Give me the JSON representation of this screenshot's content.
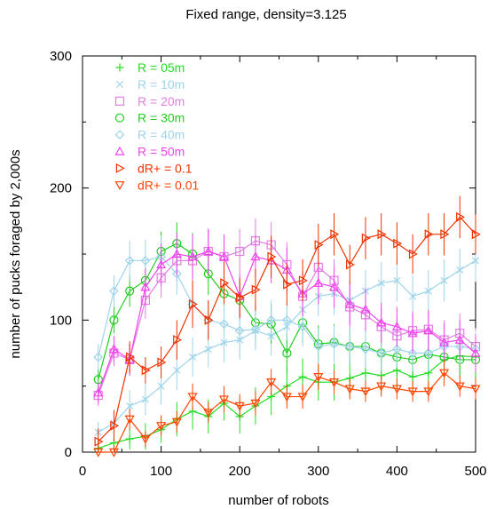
{
  "chart_data": {
    "type": "line",
    "title": "Fixed range, density=3.125",
    "xlabel": "number of robots",
    "ylabel": "number of pucks foraged by 2,000s",
    "xlim": [
      0,
      500
    ],
    "ylim": [
      0,
      300
    ],
    "xticks": [
      "0",
      "100",
      "200",
      "300",
      "400",
      "500"
    ],
    "yticks": [
      "0",
      "100",
      "200",
      "300"
    ],
    "grid": false,
    "legend_position": "top-left",
    "x": [
      20,
      40,
      60,
      80,
      100,
      120,
      140,
      160,
      180,
      200,
      220,
      240,
      260,
      280,
      300,
      320,
      340,
      360,
      380,
      400,
      420,
      440,
      460,
      480,
      500
    ],
    "series": [
      {
        "name": "R = 05m",
        "marker": "plus",
        "color": "#22dd22",
        "values": [
          3,
          7,
          10,
          12,
          17,
          25,
          31,
          27,
          37,
          27,
          35,
          42,
          50,
          57,
          53,
          53,
          56,
          60,
          58,
          62,
          57,
          60,
          70,
          73,
          72
        ],
        "errors": [
          6,
          7,
          8,
          10,
          10,
          13,
          14,
          13,
          13,
          13,
          14,
          14,
          14,
          14,
          14,
          14,
          14,
          14,
          14,
          14,
          14,
          14,
          14,
          14,
          14
        ]
      },
      {
        "name": "R = 10m",
        "marker": "x",
        "color": "#9fd4ea",
        "values": [
          15,
          22,
          35,
          40,
          50,
          62,
          72,
          78,
          83,
          85,
          92,
          88,
          95,
          108,
          118,
          120,
          115,
          122,
          128,
          130,
          118,
          122,
          130,
          138,
          145
        ],
        "errors": [
          8,
          9,
          12,
          12,
          14,
          15,
          15,
          14,
          15,
          15,
          15,
          15,
          15,
          15,
          15,
          16,
          16,
          16,
          16,
          16,
          16,
          16,
          16,
          16,
          16
        ]
      },
      {
        "name": "R = 20m",
        "marker": "square",
        "color": "#e27ee2",
        "values": [
          43,
          75,
          70,
          115,
          132,
          145,
          145,
          152,
          148,
          152,
          160,
          157,
          142,
          118,
          140,
          130,
          110,
          104,
          95,
          88,
          92,
          93,
          85,
          90,
          80
        ],
        "errors": [
          8,
          10,
          12,
          14,
          15,
          16,
          16,
          17,
          17,
          17,
          17,
          17,
          17,
          17,
          16,
          16,
          16,
          16,
          15,
          15,
          15,
          15,
          15,
          15,
          14
        ]
      },
      {
        "name": "R = 30m",
        "marker": "circle",
        "color": "#22cc22",
        "values": [
          55,
          100,
          122,
          130,
          152,
          158,
          150,
          135,
          120,
          115,
          98,
          97,
          75,
          98,
          82,
          83,
          80,
          80,
          75,
          72,
          70,
          74,
          72,
          70,
          70
        ],
        "errors": [
          8,
          10,
          12,
          14,
          15,
          16,
          16,
          16,
          16,
          15,
          15,
          15,
          15,
          15,
          14,
          14,
          14,
          14,
          14,
          14,
          14,
          14,
          14,
          14,
          14
        ]
      },
      {
        "name": "R = 40m",
        "marker": "diamond",
        "color": "#9fd4ea",
        "values": [
          72,
          122,
          145,
          145,
          148,
          135,
          112,
          100,
          97,
          92,
          93,
          100,
          100,
          95,
          80,
          82,
          80,
          78,
          75,
          78,
          75,
          75,
          80,
          80,
          78
        ],
        "errors": [
          10,
          12,
          15,
          16,
          16,
          16,
          15,
          15,
          15,
          15,
          15,
          15,
          15,
          15,
          14,
          14,
          14,
          14,
          14,
          14,
          14,
          14,
          14,
          14,
          14
        ]
      },
      {
        "name": "R = 50m",
        "marker": "triangle",
        "color": "#ee44ee",
        "values": [
          45,
          78,
          70,
          125,
          142,
          150,
          148,
          152,
          148,
          118,
          148,
          145,
          138,
          120,
          128,
          125,
          112,
          108,
          98,
          95,
          90,
          92,
          83,
          85,
          75
        ],
        "errors": [
          8,
          10,
          12,
          14,
          16,
          16,
          17,
          17,
          17,
          17,
          17,
          17,
          17,
          17,
          16,
          16,
          16,
          16,
          15,
          15,
          15,
          15,
          15,
          15,
          14
        ]
      },
      {
        "name": "dR+ = 0.1",
        "marker": "triangle-right",
        "color": "#ee3300",
        "values": [
          8,
          20,
          72,
          62,
          68,
          85,
          112,
          100,
          128,
          117,
          123,
          148,
          127,
          130,
          157,
          165,
          142,
          162,
          165,
          158,
          150,
          165,
          165,
          178,
          165
        ],
        "errors": [
          10,
          12,
          12,
          10,
          12,
          15,
          18,
          15,
          16,
          15,
          16,
          16,
          16,
          16,
          16,
          16,
          15,
          16,
          16,
          16,
          15,
          16,
          16,
          16,
          15
        ]
      },
      {
        "name": "dR+ = 0.01",
        "marker": "triangle-down",
        "color": "#ff4400",
        "values": [
          0,
          0,
          25,
          10,
          20,
          23,
          42,
          30,
          40,
          35,
          37,
          53,
          42,
          42,
          57,
          53,
          48,
          46,
          50,
          48,
          46,
          46,
          60,
          50,
          48
        ],
        "errors": [
          5,
          5,
          8,
          6,
          8,
          8,
          10,
          8,
          10,
          9,
          9,
          10,
          9,
          9,
          10,
          9,
          8,
          8,
          8,
          8,
          8,
          8,
          10,
          8,
          8
        ]
      }
    ]
  }
}
